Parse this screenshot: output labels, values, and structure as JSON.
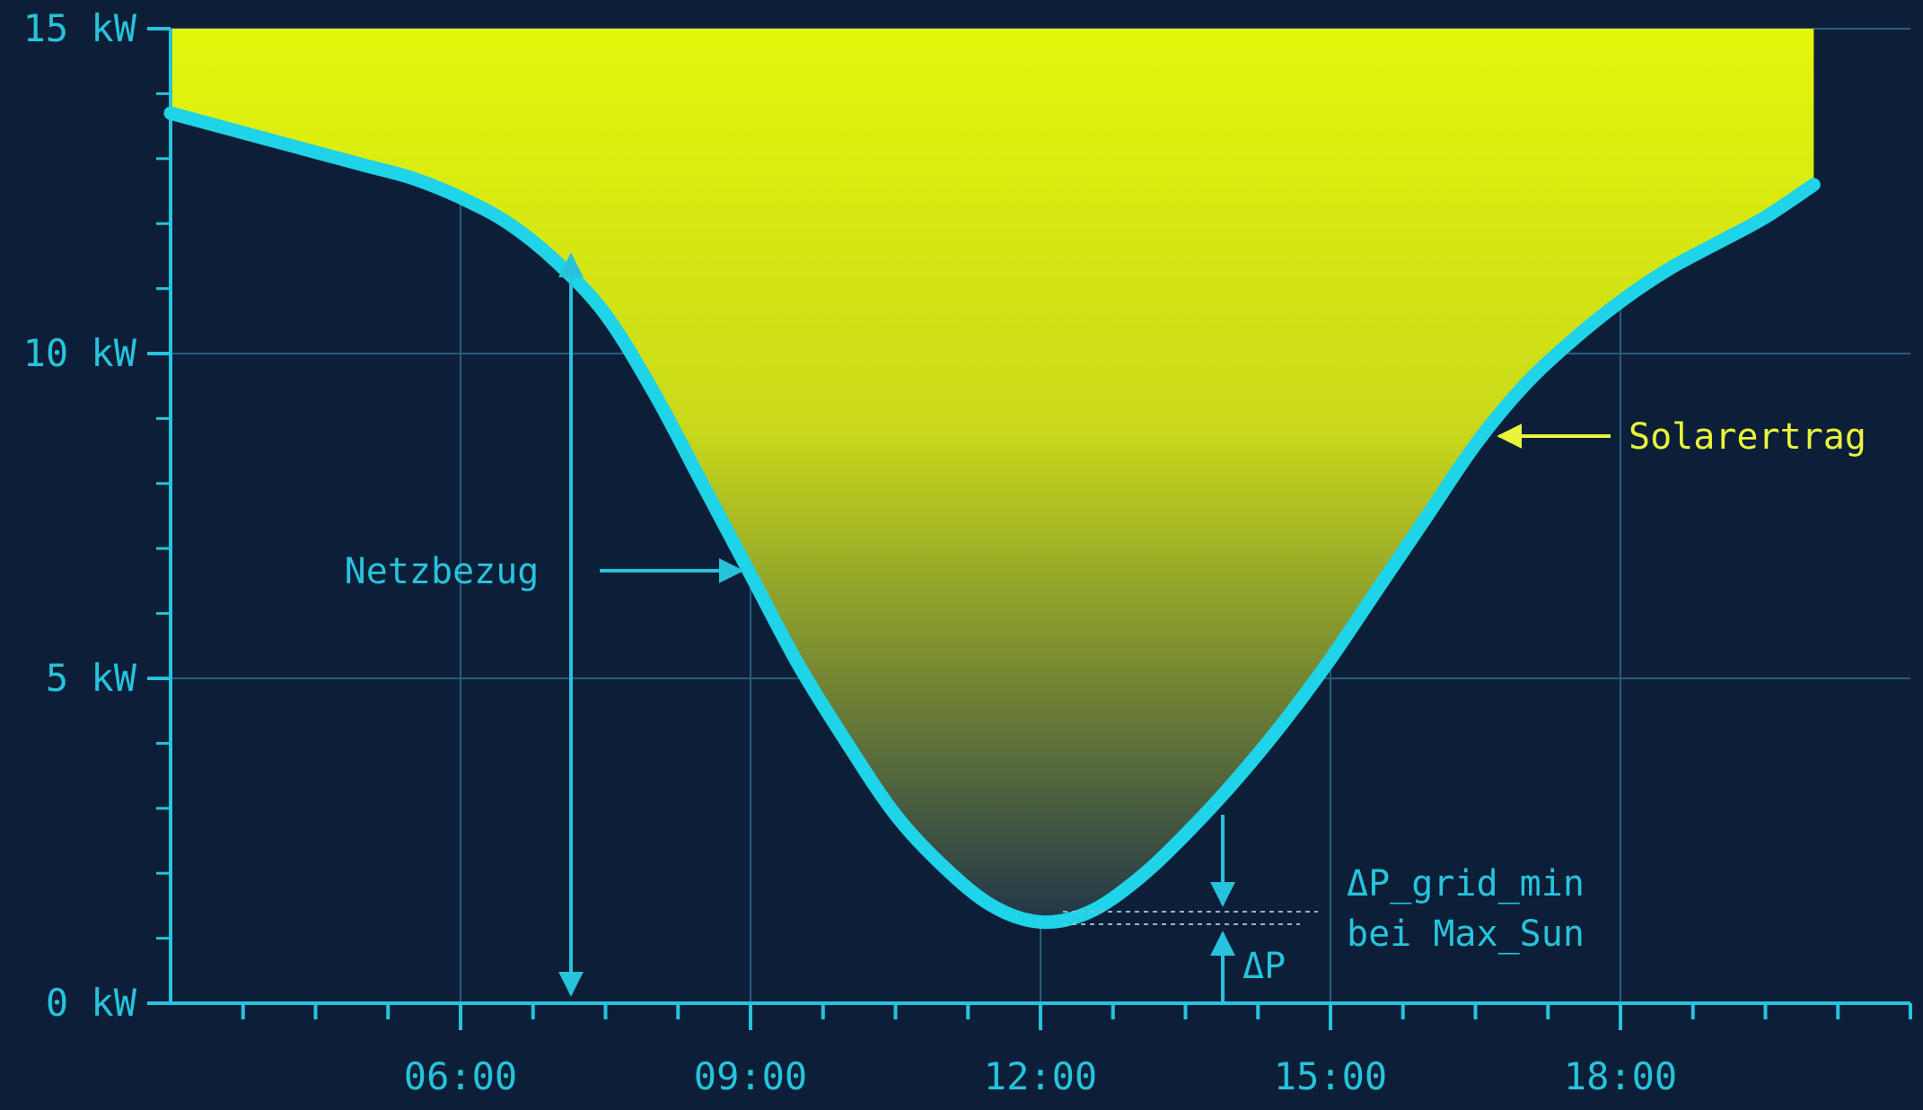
{
  "chart_data": {
    "type": "area",
    "x": [
      3.0,
      3.5,
      4.0,
      4.5,
      5.0,
      5.5,
      6.0,
      6.5,
      7.0,
      7.5,
      8.0,
      8.5,
      9.0,
      9.5,
      10.0,
      10.5,
      11.0,
      11.5,
      12.0,
      12.5,
      13.0,
      13.5,
      14.0,
      14.5,
      15.0,
      15.5,
      16.0,
      16.5,
      17.0,
      17.5,
      18.0,
      18.5,
      19.0,
      19.5,
      20.0
    ],
    "series": [
      {
        "name": "Netzbezug",
        "values": [
          13.7,
          13.5,
          13.3,
          13.1,
          12.9,
          12.7,
          12.4,
          12.0,
          11.4,
          10.6,
          9.4,
          8.0,
          6.6,
          5.2,
          4.0,
          2.9,
          2.1,
          1.5,
          1.25,
          1.4,
          1.9,
          2.6,
          3.4,
          4.3,
          5.3,
          6.4,
          7.5,
          8.6,
          9.5,
          10.2,
          10.8,
          11.3,
          11.7,
          12.1,
          12.6
        ]
      }
    ],
    "fill_top": 15,
    "title": "",
    "xlabel": "",
    "ylabel": "",
    "xlim": [
      3.0,
      21.0
    ],
    "ylim": [
      0,
      15
    ],
    "x_ticks": [
      {
        "value": 6,
        "label": "06:00"
      },
      {
        "value": 9,
        "label": "09:00"
      },
      {
        "value": 12,
        "label": "12:00"
      },
      {
        "value": 15,
        "label": "15:00"
      },
      {
        "value": 18,
        "label": "18:00"
      }
    ],
    "y_ticks": [
      {
        "value": 0,
        "label": "0 kW"
      },
      {
        "value": 5,
        "label": "5 kW"
      },
      {
        "value": 10,
        "label": "10 kW"
      },
      {
        "value": 15,
        "label": "15 kW"
      }
    ],
    "grid": true,
    "annotations": {
      "netzbezug": "Netzbezug",
      "solarertrag": "Solarertrag",
      "dp_grid_min_line1": "ΔP_grid_min",
      "dp_grid_min_line2": "bei Max_Sun",
      "dp": "ΔP"
    },
    "colors": {
      "background": "#0d1f38",
      "curve": "#1fd3e8",
      "axis": "#27c3dc",
      "fill_top": "#e4f60a",
      "fill_bottom": "#21364a",
      "solar_label": "#e9f53a",
      "grid": "#2a5d7a"
    }
  }
}
